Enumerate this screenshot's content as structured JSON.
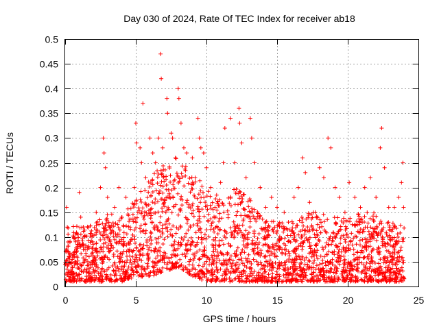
{
  "chart_data": {
    "type": "scatter",
    "title": "Day 030 of 2024, Rate Of TEC Index for receiver ab18",
    "xlabel": "GPS time / hours",
    "ylabel": "ROTI / TECUs",
    "xlim": [
      0,
      25
    ],
    "ylim": [
      0,
      0.5
    ],
    "x_ticks": [
      0,
      5,
      10,
      15,
      20,
      25
    ],
    "x_tick_labels": [
      "0",
      "5",
      "10",
      "15",
      "20",
      "25"
    ],
    "y_ticks": [
      0,
      0.05,
      0.1,
      0.15,
      0.2,
      0.25,
      0.3,
      0.35,
      0.4,
      0.45,
      0.5
    ],
    "y_tick_labels": [
      "0",
      "0.05",
      "0.1",
      "0.15",
      "0.2",
      "0.25",
      "0.3",
      "0.35",
      "0.4",
      "0.45",
      "0.5"
    ],
    "grid": true,
    "marker": "+",
    "series": [
      {
        "name": "ROTI",
        "color": "#ff0000",
        "points": [
          [
            0.1,
            0.16
          ],
          [
            0.15,
            0.12
          ],
          [
            0.2,
            0.09
          ],
          [
            0.3,
            0.05
          ],
          [
            0.5,
            0.03
          ],
          [
            0.8,
            0.07
          ],
          [
            1.0,
            0.19
          ],
          [
            1.1,
            0.14
          ],
          [
            1.3,
            0.08
          ],
          [
            1.6,
            0.05
          ],
          [
            1.9,
            0.1
          ],
          [
            2.2,
            0.15
          ],
          [
            2.5,
            0.2
          ],
          [
            2.7,
            0.3
          ],
          [
            2.75,
            0.27
          ],
          [
            2.85,
            0.24
          ],
          [
            3.0,
            0.18
          ],
          [
            3.2,
            0.12
          ],
          [
            3.5,
            0.16
          ],
          [
            3.8,
            0.2
          ],
          [
            4.0,
            0.14
          ],
          [
            4.3,
            0.18
          ],
          [
            4.6,
            0.12
          ],
          [
            4.9,
            0.2
          ],
          [
            5.0,
            0.33
          ],
          [
            5.05,
            0.29
          ],
          [
            5.3,
            0.28
          ],
          [
            5.4,
            0.25
          ],
          [
            5.5,
            0.37
          ],
          [
            5.7,
            0.22
          ],
          [
            6.0,
            0.3
          ],
          [
            6.2,
            0.27
          ],
          [
            6.4,
            0.25
          ],
          [
            6.6,
            0.3
          ],
          [
            6.75,
            0.47
          ],
          [
            6.8,
            0.42
          ],
          [
            6.9,
            0.28
          ],
          [
            7.2,
            0.38
          ],
          [
            7.25,
            0.35
          ],
          [
            7.5,
            0.31
          ],
          [
            7.6,
            0.3
          ],
          [
            7.8,
            0.26
          ],
          [
            8.0,
            0.4
          ],
          [
            8.05,
            0.38
          ],
          [
            8.2,
            0.33
          ],
          [
            8.4,
            0.28
          ],
          [
            8.6,
            0.27
          ],
          [
            9.0,
            0.26
          ],
          [
            9.2,
            0.22
          ],
          [
            9.4,
            0.34
          ],
          [
            9.5,
            0.3
          ],
          [
            9.6,
            0.28
          ],
          [
            9.8,
            0.27
          ],
          [
            10.0,
            0.24
          ],
          [
            10.3,
            0.2
          ],
          [
            10.6,
            0.16
          ],
          [
            11.0,
            0.21
          ],
          [
            11.2,
            0.25
          ],
          [
            11.3,
            0.32
          ],
          [
            11.7,
            0.34
          ],
          [
            12.0,
            0.25
          ],
          [
            12.3,
            0.36
          ],
          [
            12.35,
            0.33
          ],
          [
            12.5,
            0.29
          ],
          [
            12.8,
            0.22
          ],
          [
            13.1,
            0.34
          ],
          [
            13.2,
            0.3
          ],
          [
            13.4,
            0.25
          ],
          [
            13.8,
            0.2
          ],
          [
            14.2,
            0.16
          ],
          [
            14.6,
            0.18
          ],
          [
            15.0,
            0.16
          ],
          [
            15.5,
            0.15
          ],
          [
            15.8,
            0.13
          ],
          [
            16.2,
            0.18
          ],
          [
            16.5,
            0.2
          ],
          [
            16.8,
            0.26
          ],
          [
            17.0,
            0.23
          ],
          [
            17.3,
            0.17
          ],
          [
            17.7,
            0.15
          ],
          [
            18.0,
            0.24
          ],
          [
            18.3,
            0.22
          ],
          [
            18.6,
            0.3
          ],
          [
            18.8,
            0.28
          ],
          [
            19.1,
            0.2
          ],
          [
            19.4,
            0.18
          ],
          [
            19.8,
            0.15
          ],
          [
            20.1,
            0.21
          ],
          [
            20.5,
            0.18
          ],
          [
            20.9,
            0.16
          ],
          [
            21.2,
            0.2
          ],
          [
            21.6,
            0.22
          ],
          [
            22.0,
            0.18
          ],
          [
            22.3,
            0.28
          ],
          [
            22.4,
            0.32
          ],
          [
            22.6,
            0.24
          ],
          [
            22.9,
            0.16
          ],
          [
            23.3,
            0.16
          ],
          [
            23.6,
            0.18
          ],
          [
            23.8,
            0.21
          ],
          [
            23.9,
            0.25
          ],
          [
            23.95,
            0.16
          ]
        ]
      }
    ],
    "dense_band": {
      "description_values": "hourly envelope of the dense ROTI cloud",
      "hours": [
        0,
        1,
        2,
        3,
        4,
        5,
        6,
        7,
        8,
        9,
        10,
        11,
        12,
        13,
        14,
        15,
        16,
        17,
        18,
        19,
        20,
        21,
        22,
        23,
        24
      ],
      "upper": [
        0.13,
        0.12,
        0.13,
        0.15,
        0.14,
        0.18,
        0.22,
        0.25,
        0.27,
        0.23,
        0.2,
        0.18,
        0.2,
        0.18,
        0.14,
        0.13,
        0.13,
        0.15,
        0.15,
        0.14,
        0.14,
        0.15,
        0.15,
        0.13,
        0.13
      ],
      "lower": [
        0.01,
        0.01,
        0.01,
        0.01,
        0.01,
        0.02,
        0.02,
        0.03,
        0.04,
        0.02,
        0.01,
        0.01,
        0.01,
        0.01,
        0.01,
        0.01,
        0.01,
        0.01,
        0.01,
        0.01,
        0.01,
        0.01,
        0.01,
        0.01,
        0.01
      ]
    }
  }
}
